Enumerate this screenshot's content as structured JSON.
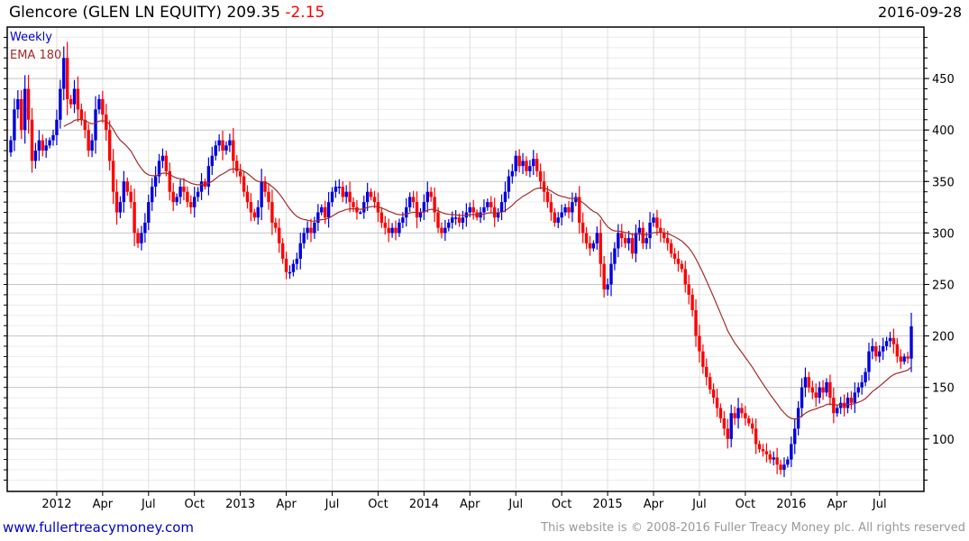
{
  "header": {
    "title": "Glencore (GLEN LN EQUITY) 209.35",
    "change": "-2.15",
    "date": "2016-09-28"
  },
  "footer": {
    "left": "www.fullertreacymoney.com",
    "right": "This website is © 2008-2016 Fuller Treacy Money plc. All rights reserved"
  },
  "colors": {
    "up": "#0000dd",
    "down": "#ff0000",
    "ema": "#a52a2a",
    "legend_weekly": "#0000cc"
  },
  "chart_data": {
    "type": "candlestick",
    "legend": [
      "Weekly",
      "EMA 180"
    ],
    "ylim": [
      49,
      500
    ],
    "y_ticks": [
      100,
      150,
      200,
      250,
      300,
      350,
      400,
      450
    ],
    "x_ticks": [
      {
        "label": "2012",
        "week": 13
      },
      {
        "label": "Apr",
        "week": 26
      },
      {
        "label": "Jul",
        "week": 39
      },
      {
        "label": "Oct",
        "week": 52
      },
      {
        "label": "2013",
        "week": 65
      },
      {
        "label": "Apr",
        "week": 78
      },
      {
        "label": "Jul",
        "week": 91
      },
      {
        "label": "Oct",
        "week": 104
      },
      {
        "label": "2014",
        "week": 117
      },
      {
        "label": "Apr",
        "week": 130
      },
      {
        "label": "Jul",
        "week": 143
      },
      {
        "label": "Oct",
        "week": 156
      },
      {
        "label": "2015",
        "week": 169
      },
      {
        "label": "Apr",
        "week": 182
      },
      {
        "label": "Jul",
        "week": 195
      },
      {
        "label": "Oct",
        "week": 208
      },
      {
        "label": "2016",
        "week": 221
      },
      {
        "label": "Apr",
        "week": 234
      },
      {
        "label": "Jul",
        "week": 246
      }
    ],
    "weekly_close": [
      390,
      420,
      430,
      400,
      440,
      410,
      370,
      380,
      390,
      380,
      385,
      390,
      395,
      410,
      440,
      470,
      430,
      425,
      440,
      420,
      410,
      400,
      380,
      390,
      420,
      430,
      415,
      400,
      370,
      340,
      320,
      330,
      350,
      340,
      330,
      300,
      290,
      300,
      310,
      330,
      345,
      355,
      370,
      375,
      360,
      340,
      330,
      335,
      345,
      340,
      330,
      325,
      335,
      340,
      350,
      345,
      365,
      375,
      385,
      390,
      380,
      385,
      390,
      370,
      360,
      355,
      340,
      330,
      320,
      315,
      325,
      350,
      340,
      330,
      310,
      305,
      290,
      275,
      262,
      262,
      270,
      275,
      290,
      300,
      305,
      300,
      310,
      320,
      325,
      315,
      330,
      340,
      345,
      345,
      335,
      340,
      330,
      325,
      320,
      320,
      330,
      340,
      335,
      330,
      320,
      310,
      305,
      300,
      305,
      300,
      310,
      315,
      325,
      335,
      330,
      315,
      320,
      330,
      340,
      335,
      320,
      305,
      300,
      305,
      310,
      315,
      315,
      310,
      315,
      320,
      325,
      320,
      315,
      320,
      325,
      330,
      325,
      315,
      320,
      330,
      340,
      355,
      360,
      375,
      365,
      370,
      360,
      365,
      372,
      360,
      350,
      340,
      330,
      320,
      310,
      315,
      320,
      325,
      320,
      330,
      335,
      310,
      300,
      290,
      285,
      290,
      300,
      270,
      245,
      250,
      270,
      285,
      300,
      295,
      290,
      295,
      280,
      300,
      305,
      290,
      295,
      310,
      315,
      305,
      300,
      295,
      290,
      280,
      275,
      270,
      265,
      250,
      240,
      225,
      200,
      185,
      170,
      160,
      148,
      140,
      130,
      120,
      110,
      100,
      125,
      120,
      130,
      125,
      120,
      115,
      110,
      95,
      90,
      88,
      85,
      80,
      82,
      75,
      70,
      75,
      80,
      95,
      110,
      130,
      150,
      160,
      150,
      145,
      140,
      150,
      145,
      155,
      140,
      125,
      130,
      135,
      130,
      140,
      135,
      145,
      150,
      155,
      165,
      185,
      190,
      180,
      185,
      190,
      195,
      198,
      192,
      180,
      175,
      180,
      178,
      209.35
    ]
  }
}
